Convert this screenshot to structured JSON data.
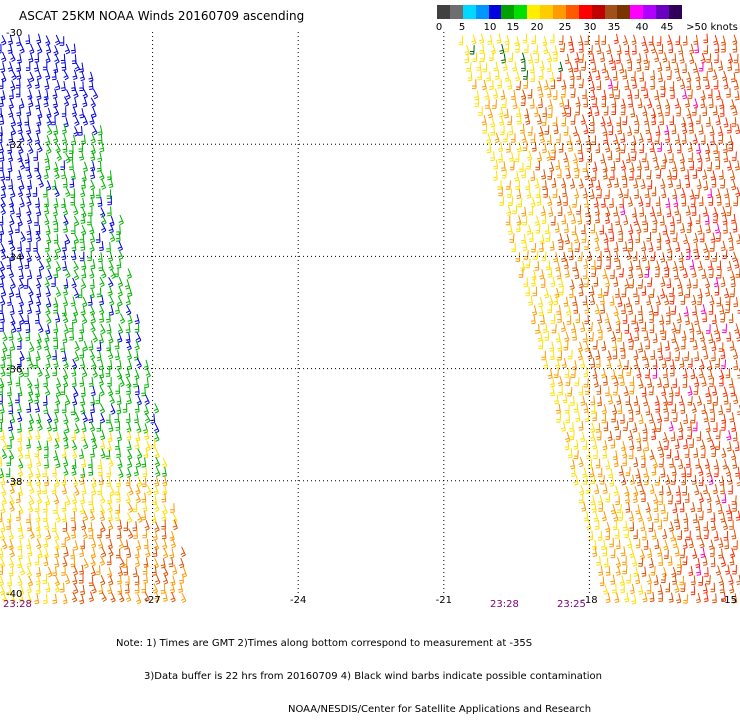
{
  "title": "ASCAT 25KM NOAA Winds 20160709 ascending",
  "colorbar": {
    "segments": [
      "#404040",
      "#6e6e6e",
      "#00d8ff",
      "#0096ff",
      "#0000e0",
      "#00a000",
      "#00e000",
      "#ffee00",
      "#ffcc00",
      "#ff9a00",
      "#ff5a00",
      "#ff0000",
      "#c00000",
      "#a05018",
      "#7a3400",
      "#ff00ff",
      "#b000ff",
      "#6a00c0",
      "#30005a"
    ],
    "labels": [
      "0",
      "5",
      "10",
      "15",
      "20",
      "25",
      "30",
      "35",
      "40",
      "45",
      ">50 knots"
    ]
  },
  "map": {
    "lat_labels": [
      "-30",
      "-32",
      "-34",
      "-36",
      "-38",
      "-40"
    ],
    "lon_labels": [
      "-27",
      "-24",
      "-21",
      "-18",
      "-15"
    ],
    "lat_range": [
      -40,
      -30
    ],
    "lon_range": [
      -30,
      -15
    ],
    "grid": "dotted"
  },
  "swaths": {
    "left_time": "23:28",
    "right_time_1": "23:28",
    "right_time_2": "23:25"
  },
  "notes": {
    "line1": "Note: 1) Times are GMT 2)Times along bottom correspond to measurement at -35S",
    "line2": "3)Data buffer is 22 hrs from 20160709 4) Black wind barbs indicate possible contamination",
    "line3": "NOAA/NESDIS/Center for Satellite Applications and Research"
  },
  "legend_colors": {
    "blue": "#0000e0",
    "green": "#00b400",
    "yellow": "#ffe000",
    "orange": "#ff9a00",
    "dark_orange": "#e05000",
    "red": "#ff2a00",
    "magenta": "#ff00c0",
    "dark_green": "#006400"
  }
}
